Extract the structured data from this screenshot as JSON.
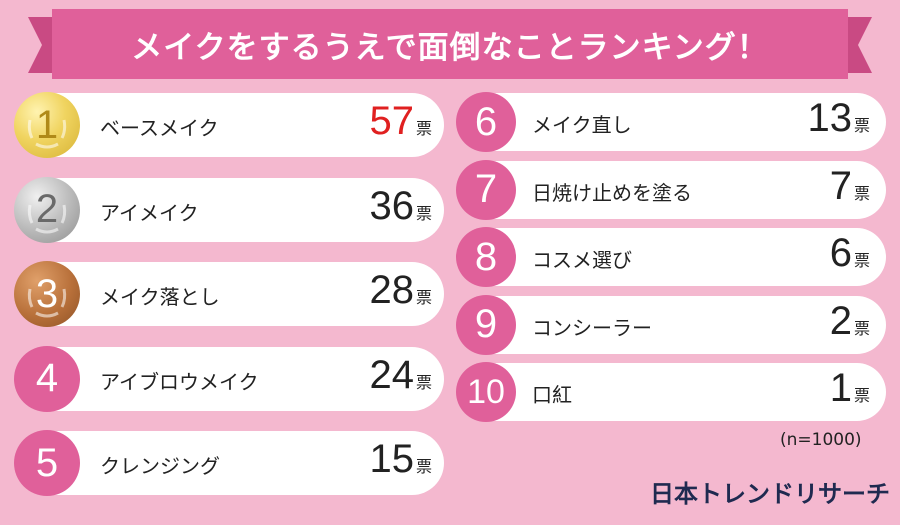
{
  "title": "メイクをするうえで面倒なことランキング！",
  "unit": "票",
  "note": "(n=1000)",
  "brand": "日本トレンドリサーチ",
  "colors": {
    "accent": "#e0609a",
    "background": "#f4b8cf",
    "highlight": "#e02020"
  },
  "chart_data": {
    "type": "bar",
    "title": "メイクをするうえで面倒なことランキング！",
    "ranks": [
      "1",
      "2",
      "3",
      "4",
      "5",
      "6",
      "7",
      "8",
      "9",
      "10"
    ],
    "categories": [
      "ベースメイク",
      "アイメイク",
      "メイク落とし",
      "アイブロウメイク",
      "クレンジング",
      "メイク直し",
      "日焼け止めを塗る",
      "コスメ選び",
      "コンシーラー",
      "口紅"
    ],
    "values": [
      57,
      36,
      28,
      24,
      15,
      13,
      7,
      6,
      2,
      1
    ],
    "value_labels": [
      "57",
      "36",
      "28",
      "24",
      "15",
      "13",
      "7",
      "6",
      "2",
      "1"
    ],
    "unit": "票",
    "n": "(n=1000)"
  }
}
